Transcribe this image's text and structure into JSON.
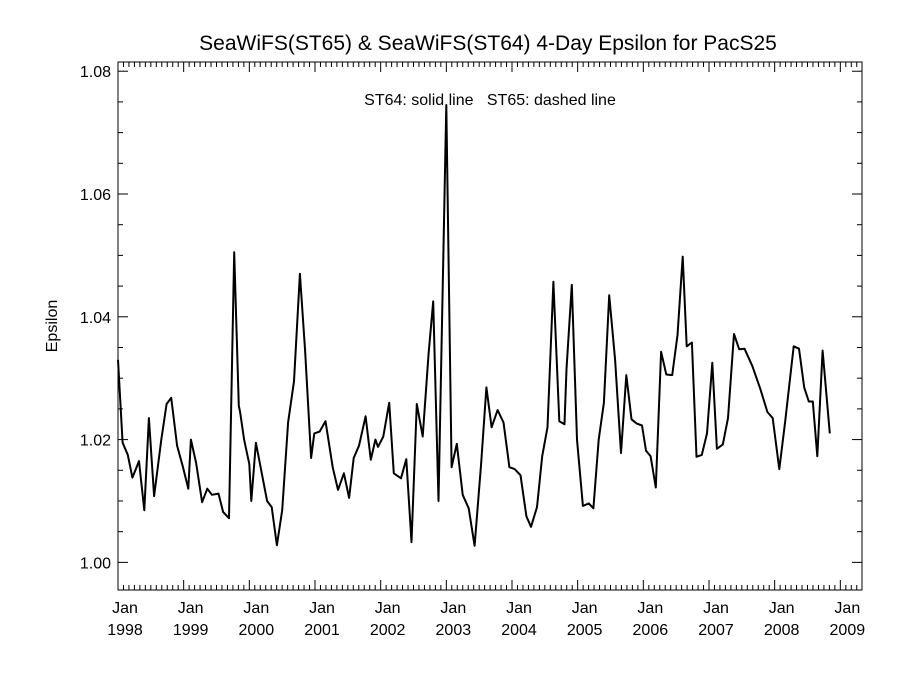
{
  "chart_data": {
    "type": "line",
    "title": "SeaWiFS(ST65) & SeaWiFS(ST64) 4-Day Epsilon for PacS25",
    "ylabel": "Epsilon",
    "xlabel": "",
    "annotation": "ST64: solid line   ST65: dashed line",
    "xlim": [
      1998.0,
      2009.33
    ],
    "ylim": [
      0.9955,
      1.0815
    ],
    "y_ticks": [
      1.0,
      1.02,
      1.04,
      1.06,
      1.08
    ],
    "y_tick_labels": [
      "1.00",
      "1.02",
      "1.04",
      "1.06",
      "1.08"
    ],
    "x_ticks": [
      1998,
      1999,
      2000,
      2001,
      2002,
      2003,
      2004,
      2005,
      2006,
      2007,
      2008,
      2009
    ],
    "x_tick_labels_top": [
      "Jan",
      "Jan",
      "Jan",
      "Jan",
      "Jan",
      "Jan",
      "Jan",
      "Jan",
      "Jan",
      "Jan",
      "Jan",
      "Jan"
    ],
    "x_tick_labels_bottom": [
      "1998",
      "1999",
      "2000",
      "2001",
      "2002",
      "2003",
      "2004",
      "2005",
      "2006",
      "2007",
      "2008",
      "2009"
    ],
    "series": [
      {
        "style": "solid",
        "points": [
          [
            1998.0,
            1.033
          ],
          [
            1998.07,
            1.0195
          ],
          [
            1998.15,
            1.0175
          ],
          [
            1998.22,
            1.0138
          ],
          [
            1998.32,
            1.0165
          ],
          [
            1998.4,
            1.0085
          ],
          [
            1998.47,
            1.0235
          ],
          [
            1998.55,
            1.0108
          ],
          [
            1998.66,
            1.02
          ],
          [
            1998.74,
            1.0258
          ],
          [
            1998.81,
            1.0268
          ],
          [
            1998.9,
            1.019
          ],
          [
            1998.99,
            1.0155
          ],
          [
            1999.07,
            1.012
          ],
          [
            1999.11,
            1.02
          ],
          [
            1999.19,
            1.0162
          ],
          [
            1999.28,
            1.0098
          ],
          [
            1999.36,
            1.012
          ],
          [
            1999.43,
            1.011
          ],
          [
            1999.53,
            1.0112
          ],
          [
            1999.6,
            1.0082
          ],
          [
            1999.69,
            1.0072
          ],
          [
            1999.77,
            1.0505
          ],
          [
            1999.84,
            1.0255
          ],
          [
            1999.86,
            1.0245
          ],
          [
            1999.92,
            1.02
          ],
          [
            2000.0,
            1.016
          ],
          [
            2000.03,
            1.01
          ],
          [
            2000.1,
            1.0195
          ],
          [
            2000.18,
            1.015
          ],
          [
            2000.27,
            1.01
          ],
          [
            2000.34,
            1.009
          ],
          [
            2000.42,
            1.0028
          ],
          [
            2000.5,
            1.0085
          ],
          [
            2000.59,
            1.0228
          ],
          [
            2000.68,
            1.0295
          ],
          [
            2000.77,
            1.047
          ],
          [
            2000.85,
            1.0345
          ],
          [
            2000.94,
            1.017
          ],
          [
            2000.99,
            1.021
          ],
          [
            2001.07,
            1.0213
          ],
          [
            2001.16,
            1.023
          ],
          [
            2001.27,
            1.0155
          ],
          [
            2001.35,
            1.0118
          ],
          [
            2001.44,
            1.0145
          ],
          [
            2001.52,
            1.0105
          ],
          [
            2001.59,
            1.017
          ],
          [
            2001.67,
            1.019
          ],
          [
            2001.77,
            1.0238
          ],
          [
            2001.85,
            1.0167
          ],
          [
            2001.92,
            1.02
          ],
          [
            2001.96,
            1.0188
          ],
          [
            2002.04,
            1.0205
          ],
          [
            2002.13,
            1.026
          ],
          [
            2002.2,
            1.0145
          ],
          [
            2002.31,
            1.0137
          ],
          [
            2002.39,
            1.0168
          ],
          [
            2002.47,
            1.0033
          ],
          [
            2002.55,
            1.0258
          ],
          [
            2002.64,
            1.0205
          ],
          [
            2002.73,
            1.034
          ],
          [
            2002.8,
            1.0425
          ],
          [
            2002.88,
            1.01
          ],
          [
            2003.0,
            1.0745
          ],
          [
            2003.08,
            1.0155
          ],
          [
            2003.16,
            1.0193
          ],
          [
            2003.25,
            1.011
          ],
          [
            2003.34,
            1.0088
          ],
          [
            2003.43,
            1.0027
          ],
          [
            2003.53,
            1.016
          ],
          [
            2003.61,
            1.0285
          ],
          [
            2003.69,
            1.022
          ],
          [
            2003.78,
            1.0248
          ],
          [
            2003.87,
            1.0228
          ],
          [
            2003.96,
            1.0155
          ],
          [
            2004.04,
            1.0152
          ],
          [
            2004.13,
            1.0142
          ],
          [
            2004.22,
            1.0075
          ],
          [
            2004.29,
            1.0058
          ],
          [
            2004.38,
            1.009
          ],
          [
            2004.46,
            1.0173
          ],
          [
            2004.54,
            1.022
          ],
          [
            2004.63,
            1.0457
          ],
          [
            2004.72,
            1.023
          ],
          [
            2004.8,
            1.0225
          ],
          [
            2004.83,
            1.0315
          ],
          [
            2004.91,
            1.0452
          ],
          [
            2004.99,
            1.02
          ],
          [
            2005.08,
            1.0092
          ],
          [
            2005.17,
            1.0096
          ],
          [
            2005.24,
            1.0088
          ],
          [
            2005.32,
            1.02
          ],
          [
            2005.4,
            1.026
          ],
          [
            2005.48,
            1.0435
          ],
          [
            2005.57,
            1.033
          ],
          [
            2005.66,
            1.0178
          ],
          [
            2005.74,
            1.0305
          ],
          [
            2005.82,
            1.0233
          ],
          [
            2005.9,
            1.0226
          ],
          [
            2005.98,
            1.0223
          ],
          [
            2006.04,
            1.0182
          ],
          [
            2006.11,
            1.0173
          ],
          [
            2006.19,
            1.0122
          ],
          [
            2006.27,
            1.0343
          ],
          [
            2006.35,
            1.0306
          ],
          [
            2006.44,
            1.0305
          ],
          [
            2006.52,
            1.037
          ],
          [
            2006.6,
            1.0498
          ],
          [
            2006.66,
            1.0352
          ],
          [
            2006.74,
            1.0358
          ],
          [
            2006.81,
            1.0172
          ],
          [
            2006.89,
            1.0175
          ],
          [
            2006.97,
            1.021
          ],
          [
            2007.05,
            1.0325
          ],
          [
            2007.12,
            1.0185
          ],
          [
            2007.21,
            1.0192
          ],
          [
            2007.29,
            1.0235
          ],
          [
            2007.38,
            1.0372
          ],
          [
            2007.46,
            1.0347
          ],
          [
            2007.54,
            1.0348
          ],
          [
            2007.66,
            1.032
          ],
          [
            2007.78,
            1.0283
          ],
          [
            2007.89,
            1.0245
          ],
          [
            2007.97,
            1.0235
          ],
          [
            2008.07,
            1.0152
          ],
          [
            2008.16,
            1.023
          ],
          [
            2008.29,
            1.0352
          ],
          [
            2008.37,
            1.0348
          ],
          [
            2008.45,
            1.0285
          ],
          [
            2008.52,
            1.0262
          ],
          [
            2008.58,
            1.0262
          ],
          [
            2008.65,
            1.0173
          ],
          [
            2008.73,
            1.0345
          ],
          [
            2008.84,
            1.021
          ]
        ]
      }
    ]
  }
}
